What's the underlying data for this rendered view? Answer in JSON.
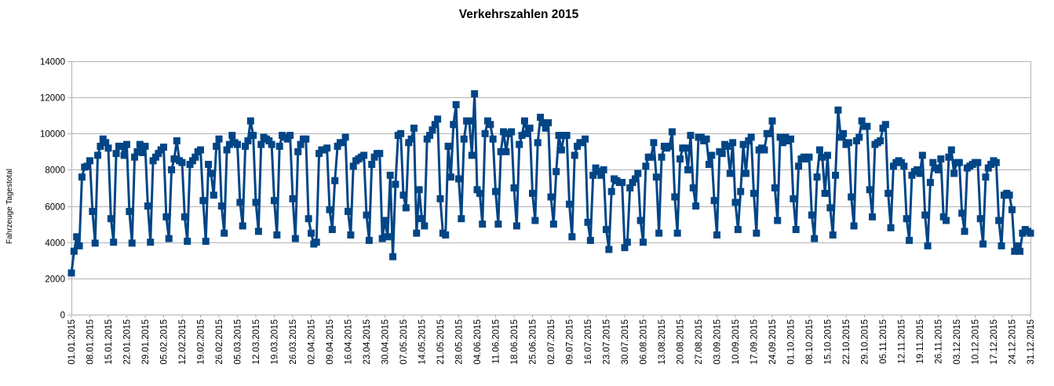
{
  "chart_data": {
    "type": "line",
    "title": "Verkehrszahlen 2015",
    "xlabel": "",
    "ylabel": "Fahrzeuge Tagestotal",
    "ylim": [
      0,
      14000
    ],
    "yticks": [
      0,
      2000,
      4000,
      6000,
      8000,
      10000,
      12000,
      14000
    ],
    "grid": true,
    "legend": "none",
    "colors": {
      "series": "#004586",
      "grid": "#b3b3b3",
      "axis": "#b3b3b3"
    },
    "marker": "square",
    "x_start": "01.01.2015",
    "x_end": "31.12.2015",
    "x_tick_labels": [
      "01.01.2015",
      "08.01.2015",
      "15.01.2015",
      "22.01.2015",
      "29.01.2015",
      "05.02.2015",
      "12.02.2015",
      "19.02.2015",
      "26.02.2015",
      "05.03.2015",
      "12.03.2015",
      "19.03.2015",
      "26.03.2015",
      "02.04.2015",
      "09.04.2015",
      "16.04.2015",
      "23.04.2015",
      "30.04.2015",
      "07.05.2015",
      "14.05.2015",
      "21.05.2015",
      "28.05.2015",
      "04.06.2015",
      "11.06.2015",
      "18.06.2015",
      "25.06.2015",
      "02.07.2015",
      "09.07.2015",
      "16.07.2015",
      "23.07.2015",
      "30.07.2015",
      "06.08.2015",
      "13.08.2015",
      "20.08.2015",
      "27.08.2015",
      "03.09.2015",
      "10.09.2015",
      "17.09.2015",
      "24.09.2015",
      "01.10.2015",
      "08.10.2015",
      "15.10.2015",
      "22.10.2015",
      "29.10.2015",
      "05.11.2015",
      "12.11.2015",
      "19.11.2015",
      "26.11.2015",
      "03.12.2015",
      "10.12.2015",
      "17.12.2015",
      "24.12.2015",
      "31.12.2015"
    ],
    "series": [
      {
        "name": "",
        "values": [
          2300,
          3500,
          4300,
          3800,
          7600,
          8150,
          8200,
          8500,
          5700,
          3950,
          8800,
          9300,
          9700,
          9500,
          9200,
          5300,
          4000,
          8900,
          9300,
          9300,
          8800,
          9400,
          5700,
          3950,
          8700,
          9000,
          9400,
          8950,
          9300,
          6000,
          4000,
          8500,
          8700,
          8900,
          9100,
          9250,
          5400,
          4200,
          8000,
          8600,
          9600,
          8500,
          8400,
          5400,
          4050,
          8300,
          8500,
          8700,
          9000,
          9100,
          6300,
          4050,
          8300,
          7800,
          6600,
          9300,
          9700,
          6000,
          4500,
          9100,
          9400,
          9900,
          9500,
          9400,
          6200,
          4900,
          9300,
          9600,
          10700,
          9900,
          6200,
          4600,
          9400,
          9800,
          9700,
          9600,
          9400,
          6300,
          4400,
          9300,
          9900,
          9800,
          9700,
          9900,
          6400,
          4200,
          9000,
          9400,
          9700,
          9700,
          5300,
          4500,
          3900,
          4000,
          8900,
          9100,
          9100,
          9200,
          5800,
          4700,
          7400,
          9300,
          9500,
          9500,
          9800,
          5700,
          4400,
          8200,
          8500,
          8600,
          8700,
          8800,
          5500,
          4100,
          8300,
          8700,
          8900,
          8900,
          4200,
          5200,
          4300,
          7700,
          3200,
          7200,
          9900,
          10000,
          6600,
          5900,
          9500,
          9700,
          10300,
          4500,
          6900,
          5300,
          4900,
          9700,
          9900,
          10200,
          10500,
          10800,
          6400,
          4500,
          4400,
          9300,
          7600,
          10500,
          11600,
          7500,
          5300,
          9700,
          10700,
          10700,
          8800,
          12200,
          6900,
          6700,
          5000,
          10000,
          10700,
          10500,
          9700,
          6800,
          5000,
          9000,
          10100,
          9000,
          10000,
          10100,
          7000,
          4900,
          9400,
          9900,
          10700,
          10000,
          10300,
          6700,
          5200,
          9500,
          10900,
          10600,
          10300,
          10600,
          6500,
          5000,
          7900,
          9900,
          9100,
          9900,
          9900,
          6100,
          4300,
          8800,
          9300,
          9500,
          9500,
          9700,
          5100,
          4100,
          7700,
          8100,
          7900,
          7700,
          8000,
          4700,
          3600,
          6800,
          7500,
          7400,
          7300,
          7300,
          3700,
          4000,
          7000,
          7300,
          7500,
          7800,
          5200,
          4000,
          8200,
          8700,
          8700,
          9500,
          7600,
          4500,
          8700,
          9300,
          9200,
          9300,
          10100,
          6500,
          4500,
          8600,
          9200,
          9200,
          8000,
          9900,
          7000,
          6000,
          9800,
          9800,
          9600,
          9700,
          8300,
          8800,
          6300,
          4400,
          9000,
          8900,
          9400,
          9300,
          7800,
          9500,
          6200,
          4700,
          6800,
          9400,
          7800,
          9600,
          9800,
          6700,
          4500,
          9100,
          9200,
          9100,
          10000,
          10000,
          10700,
          7000,
          5200,
          9800,
          9500,
          9800,
          9600,
          9700,
          6400,
          4700,
          8200,
          8600,
          8700,
          8600,
          8700,
          5500,
          4200,
          7600,
          9100,
          8700,
          6700,
          8800,
          5900,
          4400,
          7700,
          11300,
          9800,
          10000,
          9400,
          9500,
          6500,
          4900,
          9600,
          9800,
          10700,
          10400,
          10400,
          6900,
          5400,
          9400,
          9500,
          9600,
          10300,
          10500,
          6700,
          4800,
          8200,
          8400,
          8500,
          8400,
          8200,
          5300,
          4100,
          7700,
          7900,
          8000,
          7800,
          8800,
          5500,
          3800,
          7300,
          8400,
          8100,
          8000,
          8600,
          5400,
          5200,
          8700,
          9100,
          7800,
          8400,
          8400,
          5600,
          4600,
          8100,
          8200,
          8300,
          8400,
          8400,
          5300,
          3900,
          7600,
          8100,
          8300,
          8500,
          8400,
          5200,
          3800,
          6600,
          6700,
          6600,
          5800,
          3500,
          3800,
          3500,
          4500,
          4700,
          4600,
          4500
        ]
      }
    ]
  }
}
